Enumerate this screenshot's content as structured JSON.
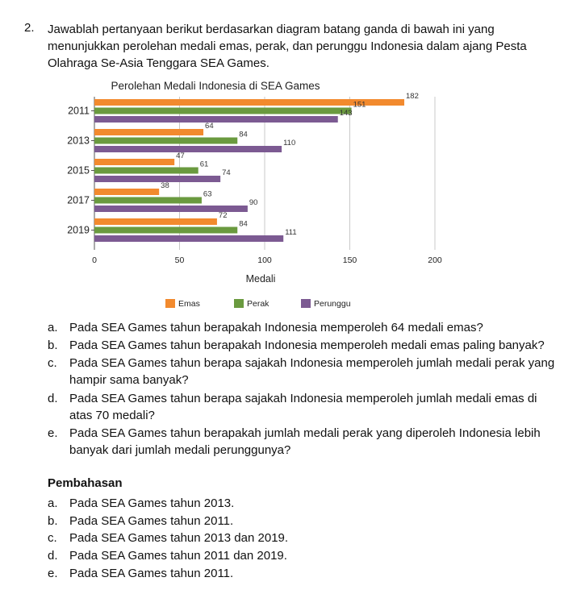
{
  "question": {
    "number": "2.",
    "text": "Jawablah pertanyaan berikut berdasarkan diagram batang ganda di bawah ini yang menunjukkan perolehan medali emas, perak, dan perunggu Indonesia dalam ajang Pesta Olahraga Se-Asia Tenggara SEA Games."
  },
  "chart_data": {
    "type": "bar",
    "orientation": "horizontal",
    "title": "Perolehan Medali Indonesia di SEA Games",
    "xlabel": "Medali",
    "ylabel": "",
    "categories": [
      "2011",
      "2013",
      "2015",
      "2017",
      "2019"
    ],
    "series": [
      {
        "name": "Emas",
        "color": "#f28a2e",
        "values": [
          182,
          64,
          47,
          38,
          72
        ]
      },
      {
        "name": "Perak",
        "color": "#6a9a3f",
        "values": [
          151,
          84,
          61,
          63,
          84
        ]
      },
      {
        "name": "Perunggu",
        "color": "#7c5a92",
        "values": [
          143,
          110,
          74,
          90,
          111
        ]
      }
    ],
    "xlim": [
      0,
      200
    ],
    "xticks": [
      "0",
      "50",
      "100",
      "150",
      "200"
    ],
    "grid": true,
    "legend": "bottom"
  },
  "questions": [
    {
      "label": "a.",
      "text": "Pada SEA Games tahun berapakah Indonesia memperoleh 64 medali emas?"
    },
    {
      "label": "b.",
      "text": "Pada SEA Games tahun berapakah Indonesia memperoleh medali emas paling banyak?"
    },
    {
      "label": "c.",
      "text": "Pada SEA Games tahun berapa sajakah Indonesia memperoleh jumlah medali perak yang hampir sama banyak?"
    },
    {
      "label": "d.",
      "text": "Pada SEA Games tahun berapa sajakah Indonesia memperoleh jumlah medali emas di atas 70 medali?"
    },
    {
      "label": "e.",
      "text": "Pada SEA Games tahun berapakah jumlah medali perak yang diperoleh Indonesia lebih banyak dari jumlah medali perunggunya?"
    }
  ],
  "pembahasan": {
    "title": "Pembahasan",
    "answers": [
      {
        "label": "a.",
        "text": "Pada SEA Games tahun 2013."
      },
      {
        "label": "b.",
        "text": "Pada SEA Games tahun 2011."
      },
      {
        "label": "c.",
        "text": "Pada SEA Games tahun 2013 dan 2019."
      },
      {
        "label": "d.",
        "text": "Pada SEA Games tahun 2011 dan 2019."
      },
      {
        "label": "e.",
        "text": "Pada SEA Games tahun 2011."
      }
    ]
  }
}
